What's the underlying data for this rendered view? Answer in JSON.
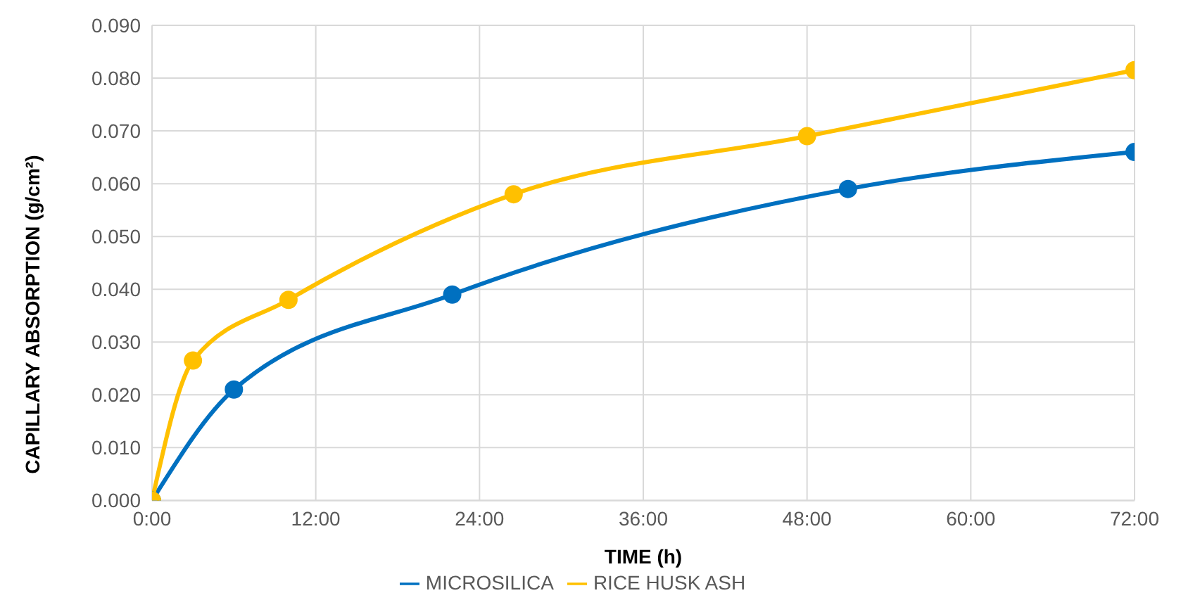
{
  "chart_data": {
    "type": "line",
    "xlabel": "TIME (h)",
    "ylabel": "CAPILLARY ABSORPTION (g/cm²)",
    "series": [
      {
        "name": "MICROSILICA",
        "color": "#0070c0",
        "x": [
          0,
          6,
          22,
          51,
          72
        ],
        "values": [
          0,
          0.021,
          0.039,
          0.059,
          0.066
        ]
      },
      {
        "name": "RICE HUSK ASH",
        "color": "#ffc000",
        "x": [
          0,
          3,
          10,
          26.5,
          48,
          72
        ],
        "values": [
          0,
          0.0265,
          0.038,
          0.058,
          0.069,
          0.0815
        ]
      }
    ],
    "xlim": [
      0,
      72
    ],
    "xticks": [
      {
        "value": 0,
        "label": "0:00"
      },
      {
        "value": 12,
        "label": "12:00"
      },
      {
        "value": 24,
        "label": "24:00"
      },
      {
        "value": 36,
        "label": "36:00"
      },
      {
        "value": 48,
        "label": "48:00"
      },
      {
        "value": 60,
        "label": "60:00"
      },
      {
        "value": 72,
        "label": "72:00"
      }
    ],
    "ylim": [
      0,
      0.09
    ],
    "yticks": [
      {
        "value": 0,
        "label": "0.000"
      },
      {
        "value": 0.01,
        "label": "0.010"
      },
      {
        "value": 0.02,
        "label": "0.020"
      },
      {
        "value": 0.03,
        "label": "0.030"
      },
      {
        "value": 0.04,
        "label": "0.040"
      },
      {
        "value": 0.05,
        "label": "0.050"
      },
      {
        "value": 0.06,
        "label": "0.060"
      },
      {
        "value": 0.07,
        "label": "0.070"
      },
      {
        "value": 0.08,
        "label": "0.080"
      },
      {
        "value": 0.09,
        "label": "0.090"
      }
    ],
    "grid": true,
    "legend": "bottom",
    "marker": "circle",
    "line_style": "solid"
  }
}
